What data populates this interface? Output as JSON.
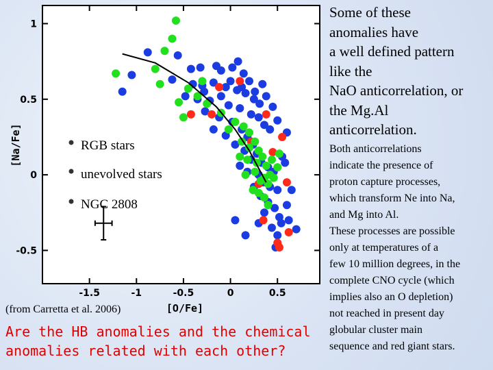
{
  "slide": {
    "headline": "Some of these\nanomalies have\na well defined pattern\nlike the\nNaO anticorrelation, or\nthe Mg.Al\nanticorrelation.",
    "body": "Both anticorrelations\nindicate the presence of\nproton capture processes,\nwhich transform  Ne into Na,\nand Mg into Al.\nThese processes are  possible\nonly at temperatures of a\nfew 10 million degrees, in the\ncomplete CNO cycle (which\nimplies also an O depletion)\nnot reached in present day\nglobular cluster main\nsequence and red giant  stars.",
    "question": "Are the HB anomalies and the chemical\nanomalies related with each other?"
  },
  "chart_data": {
    "type": "scatter",
    "xlabel": "[O/Fe]",
    "ylabel": "[Na/Fe]",
    "xlim": [
      -2.0,
      0.95
    ],
    "ylim": [
      -0.72,
      1.12
    ],
    "xticks": [
      "-1.5",
      "-1",
      "-0.5",
      "0",
      "0.5"
    ],
    "xtick_values": [
      -1.5,
      -1,
      -0.5,
      0,
      0.5
    ],
    "yticks": [
      "1",
      "0.5",
      "0",
      "-0.5"
    ],
    "ytick_values": [
      1,
      0.5,
      0,
      -0.5
    ],
    "credit": "(from Carretta et al. 2006)",
    "colors": {
      "RGB stars": "#1a3ce0",
      "unevolved stars": "#ff2a1a",
      "NGC 2808": "#22e01e"
    },
    "series": [
      {
        "name": "RGB stars",
        "color": "#1a3ce0",
        "points": [
          [
            -0.88,
            0.81
          ],
          [
            -0.56,
            0.79
          ],
          [
            -0.42,
            0.7
          ],
          [
            -0.32,
            0.71
          ],
          [
            -0.15,
            0.72
          ],
          [
            -0.1,
            0.69
          ],
          [
            0.02,
            0.71
          ],
          [
            0.08,
            0.75
          ],
          [
            0.14,
            0.67
          ],
          [
            0.2,
            0.62
          ],
          [
            -1.05,
            0.66
          ],
          [
            -0.62,
            0.63
          ],
          [
            -0.4,
            0.6
          ],
          [
            -0.3,
            0.59
          ],
          [
            -0.18,
            0.61
          ],
          [
            -0.05,
            0.58
          ],
          [
            0.07,
            0.56
          ],
          [
            0.16,
            0.54
          ],
          [
            0.25,
            0.5
          ],
          [
            0.31,
            0.47
          ],
          [
            -1.15,
            0.55
          ],
          [
            -0.48,
            0.52
          ],
          [
            -0.35,
            0.5
          ],
          [
            -0.22,
            0.49
          ],
          [
            -0.02,
            0.46
          ],
          [
            0.1,
            0.44
          ],
          [
            0.22,
            0.4
          ],
          [
            0.3,
            0.38
          ],
          [
            0.36,
            0.33
          ],
          [
            0.42,
            0.3
          ],
          [
            -0.27,
            0.42
          ],
          [
            -0.12,
            0.38
          ],
          [
            0.02,
            0.35
          ],
          [
            0.12,
            0.3
          ],
          [
            0.18,
            0.25
          ],
          [
            0.24,
            0.2
          ],
          [
            0.28,
            0.14
          ],
          [
            0.33,
            0.08
          ],
          [
            0.4,
            0.05
          ],
          [
            0.46,
            0.02
          ],
          [
            -0.18,
            0.3
          ],
          [
            -0.05,
            0.26
          ],
          [
            0.05,
            0.2
          ],
          [
            0.15,
            0.16
          ],
          [
            0.22,
            0.1
          ],
          [
            0.3,
            0.0
          ],
          [
            0.35,
            -0.05
          ],
          [
            0.42,
            -0.08
          ],
          [
            0.5,
            -0.1
          ],
          [
            0.55,
            0.12
          ],
          [
            0.1,
            0.06
          ],
          [
            0.18,
            0.02
          ],
          [
            0.25,
            -0.08
          ],
          [
            0.32,
            -0.14
          ],
          [
            0.4,
            -0.18
          ],
          [
            0.47,
            -0.22
          ],
          [
            0.52,
            -0.28
          ],
          [
            0.6,
            -0.2
          ],
          [
            0.65,
            -0.1
          ],
          [
            0.58,
            0.08
          ],
          [
            0.36,
            -0.25
          ],
          [
            0.44,
            -0.35
          ],
          [
            0.5,
            -0.4
          ],
          [
            0.54,
            -0.32
          ],
          [
            0.62,
            -0.3
          ],
          [
            0.7,
            -0.36
          ],
          [
            0.3,
            -0.32
          ],
          [
            0.48,
            -0.48
          ],
          [
            0.16,
            -0.4
          ],
          [
            0.05,
            -0.3
          ],
          [
            -0.28,
            0.55
          ],
          [
            -0.1,
            0.52
          ],
          [
            0.0,
            0.62
          ],
          [
            0.12,
            0.58
          ],
          [
            0.26,
            0.55
          ],
          [
            0.34,
            0.6
          ],
          [
            0.38,
            0.52
          ],
          [
            0.45,
            0.45
          ],
          [
            0.5,
            0.36
          ],
          [
            0.6,
            0.28
          ]
        ]
      },
      {
        "name": "unevolved stars",
        "color": "#ff2a1a",
        "points": [
          [
            -0.12,
            0.58
          ],
          [
            0.1,
            0.62
          ],
          [
            -0.2,
            0.4
          ],
          [
            0.38,
            0.4
          ],
          [
            0.55,
            0.25
          ],
          [
            0.45,
            0.15
          ],
          [
            -0.42,
            0.4
          ],
          [
            0.6,
            -0.05
          ],
          [
            0.35,
            -0.3
          ],
          [
            0.5,
            -0.45
          ],
          [
            0.62,
            -0.38
          ],
          [
            0.52,
            -0.48
          ],
          [
            0.3,
            -0.06
          ],
          [
            0.22,
            0.22
          ]
        ]
      },
      {
        "name": "NGC 2808",
        "color": "#22e01e",
        "points": [
          [
            -0.58,
            1.02
          ],
          [
            -0.62,
            0.9
          ],
          [
            -0.7,
            0.82
          ],
          [
            -1.22,
            0.67
          ],
          [
            -0.8,
            0.7
          ],
          [
            -0.45,
            0.57
          ],
          [
            -0.75,
            0.6
          ],
          [
            -0.55,
            0.48
          ],
          [
            -0.35,
            0.52
          ],
          [
            -0.25,
            0.47
          ],
          [
            -0.1,
            0.41
          ],
          [
            0.05,
            0.35
          ],
          [
            0.14,
            0.32
          ],
          [
            0.2,
            0.28
          ],
          [
            0.26,
            0.22
          ],
          [
            0.3,
            0.16
          ],
          [
            0.34,
            0.12
          ],
          [
            0.38,
            0.06
          ],
          [
            0.42,
            0.0
          ],
          [
            0.36,
            -0.02
          ],
          [
            0.26,
            0.02
          ],
          [
            0.18,
            0.1
          ],
          [
            0.28,
            0.08
          ],
          [
            0.32,
            -0.04
          ],
          [
            0.4,
            -0.06
          ],
          [
            0.46,
            -0.02
          ],
          [
            0.5,
            0.05
          ],
          [
            0.24,
            -0.1
          ],
          [
            0.3,
            -0.12
          ],
          [
            0.36,
            -0.15
          ],
          [
            0.12,
            0.22
          ],
          [
            -0.02,
            0.3
          ],
          [
            -0.3,
            0.62
          ],
          [
            -0.5,
            0.38
          ],
          [
            0.44,
            0.1
          ],
          [
            0.52,
            0.14
          ],
          [
            0.2,
            0.18
          ],
          [
            0.1,
            0.12
          ],
          [
            0.16,
            0.0
          ],
          [
            0.4,
            -0.2
          ]
        ]
      }
    ],
    "trend_line": [
      [
        -1.15,
        0.8
      ],
      [
        -0.8,
        0.74
      ],
      [
        -0.45,
        0.61
      ],
      [
        -0.15,
        0.45
      ],
      [
        0.05,
        0.3
      ],
      [
        0.2,
        0.16
      ],
      [
        0.32,
        0.02
      ],
      [
        0.38,
        -0.05
      ]
    ],
    "error_bar": {
      "center": [
        -1.35,
        -0.32
      ],
      "dx": 0.09,
      "dy": 0.11
    }
  }
}
